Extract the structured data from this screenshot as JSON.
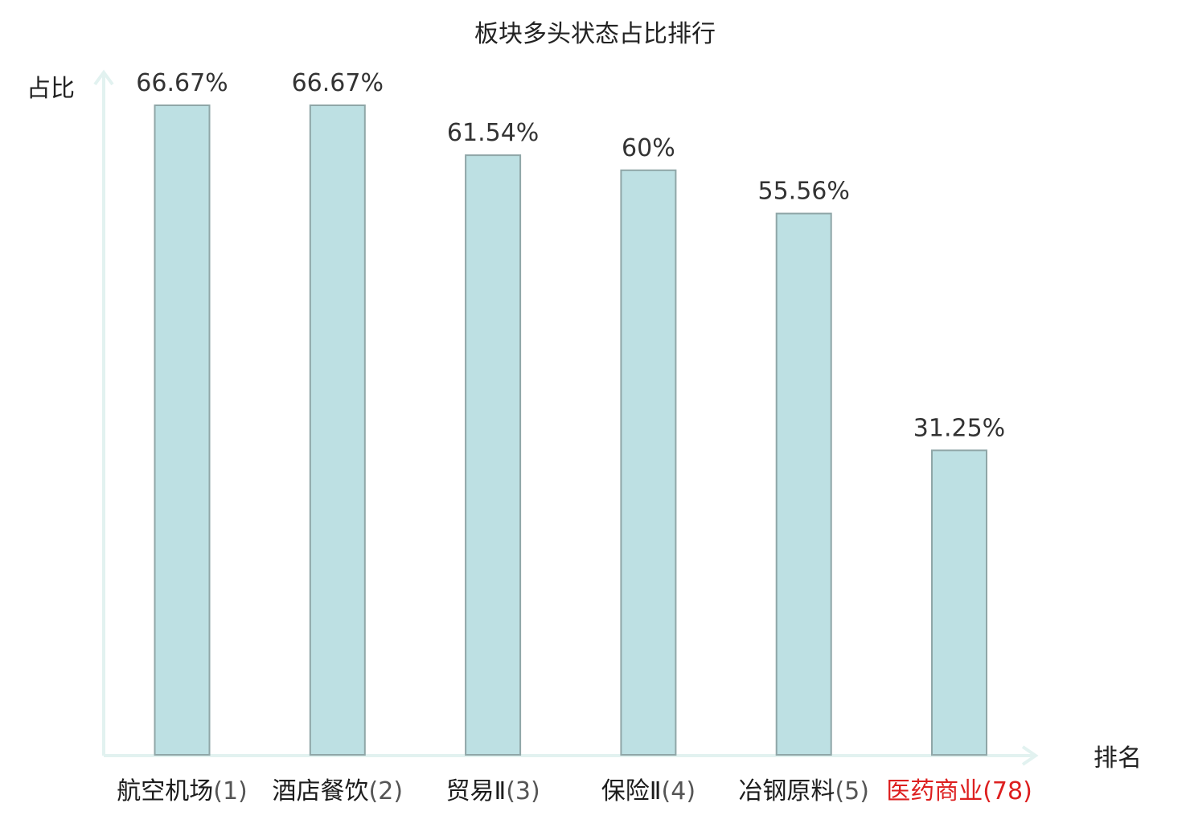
{
  "chart_data": {
    "type": "bar",
    "title": "板块多头状态占比排行",
    "ylabel": "占比",
    "xlabel": "排名",
    "ylim": [
      0,
      70
    ],
    "grid": false,
    "legend": "none",
    "categories": [
      {
        "name": "航空机场",
        "rank": "(1)",
        "highlight": false
      },
      {
        "name": "酒店餐饮",
        "rank": "(2)",
        "highlight": false
      },
      {
        "name": "贸易Ⅱ",
        "rank": "(3)",
        "highlight": false
      },
      {
        "name": "保险Ⅱ",
        "rank": "(4)",
        "highlight": false
      },
      {
        "name": "冶钢原料",
        "rank": "(5)",
        "highlight": false
      },
      {
        "name": "医药商业",
        "rank": "(78)",
        "highlight": true
      }
    ],
    "values": [
      66.67,
      66.67,
      61.54,
      60,
      55.56,
      31.25
    ],
    "value_labels": [
      "66.67%",
      "66.67%",
      "61.54%",
      "60%",
      "55.56%",
      "31.25%"
    ],
    "colors": {
      "bar_fill": "#bde0e3",
      "bar_stroke": "#8fa6a7",
      "axis": "#e2f2f0",
      "highlight_text": "#dd1f1f"
    }
  }
}
